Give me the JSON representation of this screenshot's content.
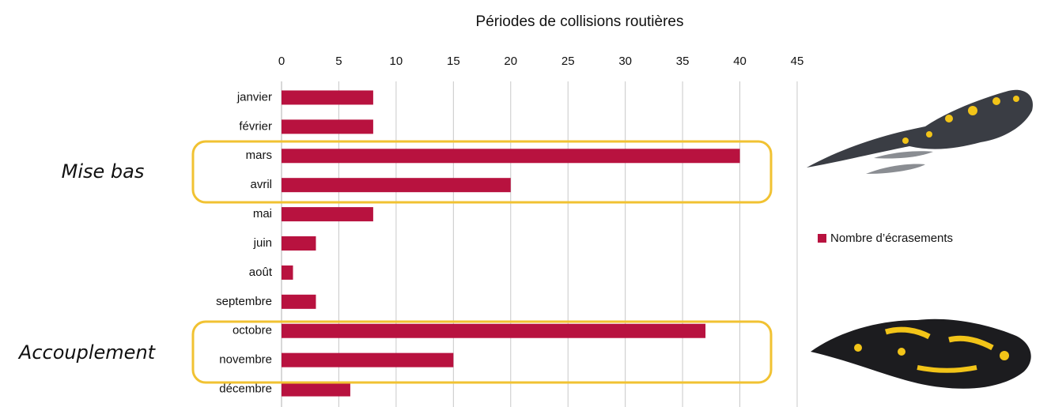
{
  "chart_data": {
    "type": "bar",
    "horizontal": true,
    "title": "Périodes de collisions routières",
    "categories": [
      "janvier",
      "février",
      "mars",
      "avril",
      "mai",
      "juin",
      "août",
      "septembre",
      "octobre",
      "novembre",
      "décembre"
    ],
    "series": [
      {
        "name": "Nombre d’écrasements",
        "color": "#b8123f",
        "values": [
          8,
          8,
          40,
          20,
          8,
          3,
          1,
          3,
          37,
          15,
          6
        ]
      }
    ],
    "xlim": [
      0,
      45
    ],
    "xticks": [
      0,
      5,
      10,
      15,
      20,
      25,
      30,
      35,
      40,
      45
    ],
    "grid": true,
    "annotations": [
      "Mise bas",
      "Accouplement"
    ]
  }
}
